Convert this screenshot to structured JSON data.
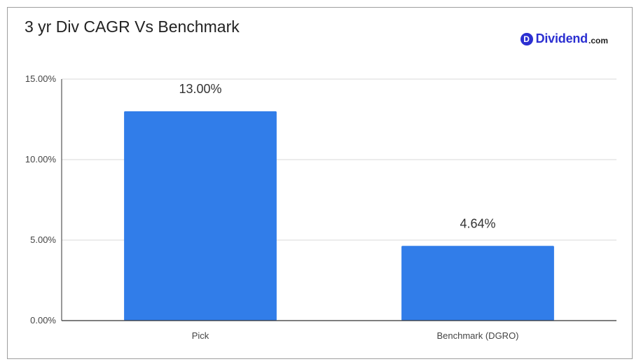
{
  "brand": {
    "badge_letter": "D",
    "name": "Dividend",
    "tld": ".com",
    "color": "#2b2fd1"
  },
  "chart_data": {
    "type": "bar",
    "title": "3 yr Div CAGR Vs Benchmark",
    "categories": [
      "Pick",
      "Benchmark (DGRO)"
    ],
    "values": [
      13.0,
      4.64
    ],
    "data_labels": [
      "13.00%",
      "4.64%"
    ],
    "xlabel": "",
    "ylabel": "",
    "ylim": [
      0,
      15
    ],
    "yticks": [
      0,
      5,
      10,
      15
    ],
    "ytick_labels": [
      "0.00%",
      "5.00%",
      "10.00%",
      "15.00%"
    ],
    "grid": true,
    "bar_color": "#317de9"
  }
}
